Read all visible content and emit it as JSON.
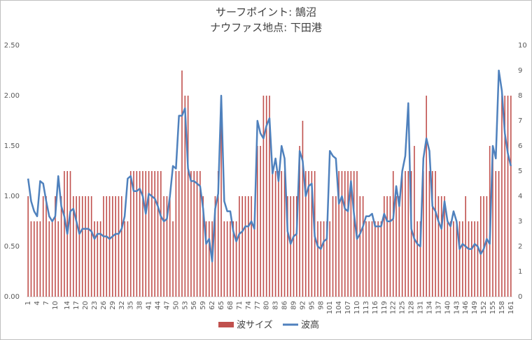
{
  "chart_data": {
    "type": "bar-line",
    "title": "サーフポイント: 鵠沼",
    "subtitle": "ナウファス地点: 下田港",
    "categories": [
      1,
      null,
      null,
      4,
      null,
      null,
      7,
      null,
      null,
      10,
      null,
      null,
      null,
      14,
      null,
      null,
      17,
      null,
      null,
      20,
      null,
      null,
      23,
      null,
      null,
      26,
      null,
      null,
      29,
      null,
      null,
      32,
      null,
      null,
      35,
      null,
      null,
      38,
      null,
      null,
      41,
      null,
      null,
      44,
      null,
      null,
      47,
      null,
      null,
      50,
      null,
      null,
      53,
      null,
      null,
      56,
      null,
      null,
      59,
      null,
      null,
      62,
      null,
      null,
      65,
      null,
      null,
      68,
      null,
      null,
      71,
      null,
      null,
      74,
      null,
      null,
      77,
      null,
      null,
      80,
      null,
      null,
      83,
      null,
      null,
      86,
      null,
      null,
      89,
      null,
      null,
      92,
      null,
      null,
      95,
      null,
      null,
      98,
      null,
      null,
      101,
      null,
      null,
      104,
      null,
      null,
      107,
      null,
      null,
      110,
      null,
      null,
      113,
      null,
      null,
      116,
      null,
      null,
      119,
      null,
      null,
      122,
      null,
      null,
      125,
      null,
      null,
      128,
      null,
      null,
      131,
      null,
      null,
      134,
      null,
      null,
      137,
      null,
      null,
      140,
      null,
      null,
      143,
      null,
      null,
      146,
      null,
      null,
      149,
      null,
      null,
      152,
      null,
      null,
      155,
      null,
      null,
      158,
      null,
      null,
      161
    ],
    "series": [
      {
        "name": "波サイズ",
        "kind": "bar",
        "color": "#c0504d",
        "values": [
          1,
          0.75,
          0.75,
          0.75,
          0.75,
          1,
          1,
          0.75,
          0.75,
          1,
          0.75,
          1,
          1.25,
          1.25,
          1.25,
          1,
          1,
          1,
          1,
          1,
          1,
          1,
          0.75,
          0.75,
          0.75,
          1,
          1,
          1,
          1,
          1,
          1,
          1,
          0.75,
          0.75,
          1.25,
          1.25,
          1.25,
          1.25,
          1.25,
          1.25,
          1.25,
          1.25,
          1.25,
          1.25,
          1.25,
          1,
          1,
          1,
          0.75,
          1.25,
          1.25,
          2.25,
          2,
          2,
          1.25,
          1.25,
          1.25,
          1.25,
          1,
          0.75,
          0.75,
          0.75,
          1,
          1.25,
          2,
          0.75,
          0.75,
          0.75,
          0.75,
          0.75,
          1,
          1,
          1,
          1,
          1,
          0.75,
          1.5,
          1.5,
          2,
          2,
          2,
          1.25,
          1.25,
          1.25,
          1.25,
          1.25,
          1,
          1,
          1,
          1,
          1.5,
          1.75,
          1.25,
          1.25,
          1.25,
          1.25,
          0.75,
          0.75,
          0.75,
          0.75,
          0.75,
          1,
          1,
          1.25,
          1.25,
          1.25,
          1.25,
          1.25,
          1.25,
          1.25,
          1,
          1,
          0.75,
          0.75,
          0.75,
          0.75,
          0.75,
          0.75,
          1,
          1,
          1,
          1.25,
          1,
          1,
          1.25,
          1.25,
          1.25,
          1.25,
          1.5,
          0.75,
          0.75,
          1.25,
          2,
          1.25,
          1.25,
          1.25,
          1,
          1,
          1,
          0.75,
          0.75,
          0.75,
          0.75,
          0.75,
          0.75,
          1,
          0.75,
          0.75,
          0.75,
          0.75,
          1,
          1,
          1,
          1.5,
          1.5,
          1.25,
          1.25,
          2,
          2,
          2,
          2
        ]
      },
      {
        "name": "波高",
        "kind": "line",
        "axis": "y2",
        "color": "#4f81bd",
        "values": [
          4.7,
          3.8,
          3.4,
          3.2,
          4.6,
          4.5,
          3.8,
          3.2,
          3.0,
          3.2,
          4.8,
          3.6,
          3.2,
          2.5,
          3.4,
          3.5,
          3.0,
          2.5,
          2.7,
          2.7,
          2.7,
          2.6,
          2.3,
          2.5,
          2.5,
          2.4,
          2.4,
          2.3,
          2.4,
          2.5,
          2.5,
          2.7,
          3.2,
          4.7,
          4.8,
          4.2,
          4.2,
          4.3,
          4.0,
          3.3,
          4.1,
          4.0,
          3.9,
          3.6,
          3.2,
          3.0,
          3.1,
          4.0,
          5.2,
          5.1,
          7.2,
          7.2,
          7.5,
          5.1,
          4.6,
          4.6,
          4.5,
          4.4,
          3.5,
          2.1,
          2.3,
          1.4,
          3.5,
          4.1,
          8.0,
          3.8,
          3.4,
          3.4,
          2.6,
          2.2,
          2.5,
          2.6,
          2.8,
          2.8,
          3.0,
          2.7,
          7.0,
          6.5,
          6.3,
          6.8,
          7.1,
          4.9,
          5.5,
          4.6,
          6.0,
          5.5,
          2.6,
          2.1,
          2.4,
          2.5,
          5.8,
          5.4,
          4.0,
          4.4,
          4.5,
          2.4,
          2.0,
          1.9,
          2.2,
          2.3,
          5.8,
          5.6,
          5.5,
          3.7,
          4.0,
          3.5,
          3.4,
          4.6,
          3.3,
          2.3,
          2.5,
          2.8,
          3.2,
          3.2,
          3.3,
          2.8,
          2.8,
          2.8,
          3.3,
          3.0,
          3.0,
          3.1,
          4.4,
          3.6,
          5.0,
          5.6,
          7.7,
          2.7,
          2.3,
          2.1,
          2.0,
          5.5,
          6.3,
          5.8,
          3.6,
          3.4,
          3.0,
          2.7,
          3.8,
          3.0,
          2.8,
          3.4,
          3.0,
          1.9,
          2.1,
          2.0,
          1.9,
          1.9,
          2.1,
          2.0,
          1.7,
          1.9,
          2.3,
          2.1,
          6.0,
          5.5,
          9.0,
          8.2,
          6.5,
          5.7,
          5.2
        ]
      }
    ],
    "ylim": [
      0,
      2.5
    ],
    "yticks": [
      {
        "value": 0,
        "label": "0.00"
      },
      {
        "value": 0.5,
        "label": "0.50"
      },
      {
        "value": 1,
        "label": "1.00"
      },
      {
        "value": 1.5,
        "label": "1.50"
      },
      {
        "value": 2,
        "label": "2.00"
      },
      {
        "value": 2.5,
        "label": "2.50"
      }
    ],
    "y2lim": [
      0,
      10
    ],
    "y2ticks": [
      0,
      1,
      2,
      3,
      4,
      5,
      6,
      7,
      8,
      9,
      10
    ],
    "grid": false,
    "legend": "bottom"
  }
}
